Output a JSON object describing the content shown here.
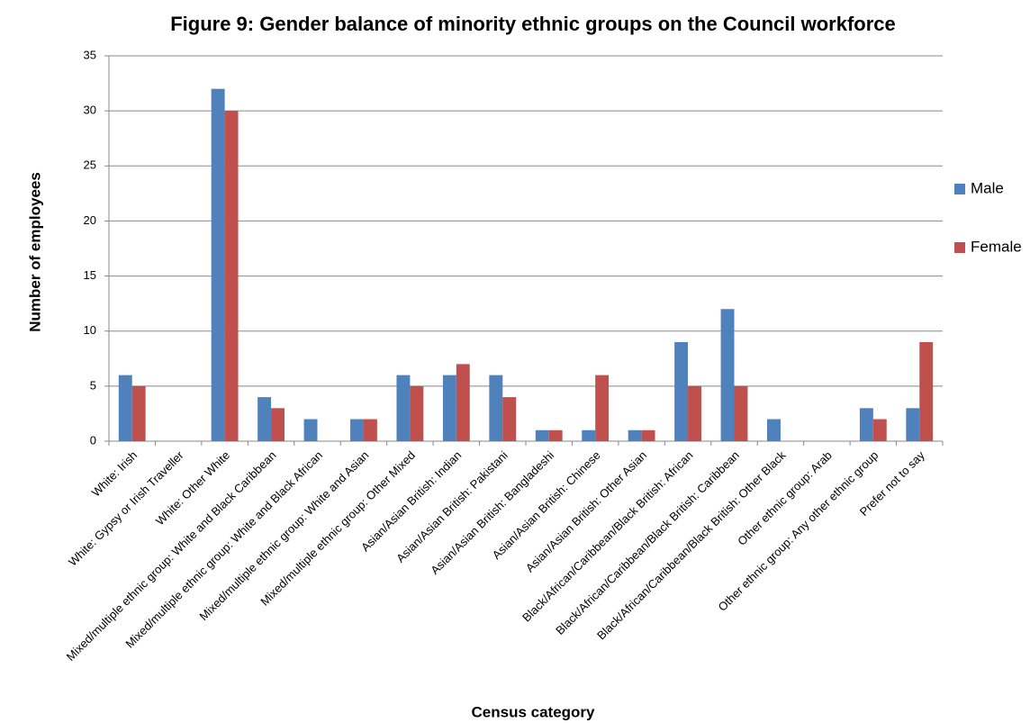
{
  "chart_data": {
    "type": "bar",
    "title": "Figure 9: Gender balance of minority ethnic groups on the Council workforce",
    "x_label": "Census category",
    "y_label": "Number of employees",
    "categories": [
      "White: Irish",
      "White: Gypsy or Irish Traveller",
      "White: Other White",
      "Mixed/multiple ethnic group: White and Black Caribbean",
      "Mixed/multiple ethnic group: White and Black African",
      "Mixed/multiple ethnic group: White and Asian",
      "Mixed/multiple ethnic group: Other Mixed",
      "Asian/Asian British: Indian",
      "Asian/Asian British: Pakistani",
      "Asian/Asian British: Bangladeshi",
      "Asian/Asian British: Chinese",
      "Asian/Asian British: Other Asian",
      "Black/African/Caribbean/Black British: African",
      "Black/African/Caribbean/Black British: Caribbean",
      "Black/African/Caribbean/Black British: Other Black",
      "Other ethnic group: Arab",
      "Other ethnic group: Any other ethnic group",
      "Prefer not to say"
    ],
    "series": [
      {
        "name": "Male",
        "color": "#4f81bd",
        "values": [
          6,
          0,
          32,
          4,
          2,
          2,
          6,
          6,
          6,
          1,
          1,
          1,
          9,
          12,
          2,
          0,
          3,
          3
        ]
      },
      {
        "name": "Female",
        "color": "#c0504d",
        "values": [
          5,
          0,
          30,
          3,
          0,
          2,
          5,
          7,
          4,
          1,
          6,
          1,
          5,
          5,
          0,
          0,
          2,
          9
        ]
      }
    ],
    "ylim": [
      0,
      35
    ],
    "yticks": [
      0,
      5,
      10,
      15,
      20,
      25,
      30,
      35
    ],
    "grid": true,
    "legend": "right"
  }
}
